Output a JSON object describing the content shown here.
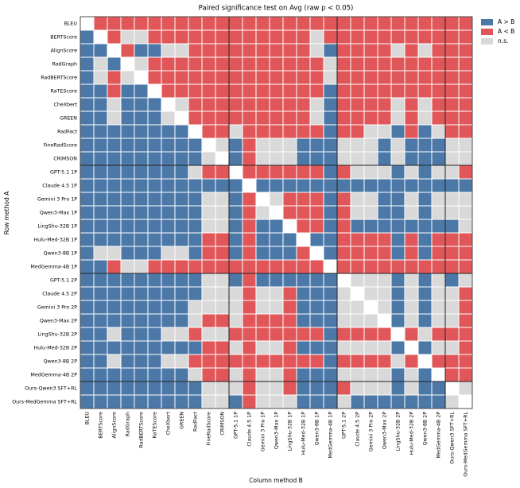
{
  "chart_data": {
    "type": "heatmap",
    "title": "Paired significance test on Avg (raw p < 0.05)",
    "x_label": "Column method B",
    "y_label": "Row method A",
    "categories": [
      "BLEU",
      "BERTScore",
      "AlignScore",
      "RadGraph",
      "RadBERTScore",
      "RaTEScore",
      "CheXbert",
      "GREEN",
      "RadFact",
      "FineRadScore",
      "CRIMSON",
      "GPT-5.1 1P",
      "Claude 4.5 1P",
      "Gemini 3 Pro 1P",
      "Qwen3-Max 1P",
      "LingShu-32B 1P",
      "Hulu-Med-32B 1P",
      "Qwen3-8B 1P",
      "MedGemma-4B 1P",
      "GPT-5.1 2P",
      "Claude 4.5 2P",
      "Gemini 3 Pro 2P",
      "Qwen3-Max 2P",
      "LingShu-32B 2P",
      "Hulu-Med-32B 2P",
      "Qwen3-8B 2P",
      "MedGemma-4B 2P",
      "Ours-Qwen3 SFT+RL",
      "Ours-MedGemma SFT+RL"
    ],
    "legend": [
      {
        "name": "A > B",
        "value": 1,
        "color": "#4c78a8"
      },
      {
        "name": "A < B",
        "value": -1,
        "color": "#e15759"
      },
      {
        "name": "n.s.",
        "value": 0,
        "color": "#d9d9d9"
      }
    ],
    "legend_position": "upper right outside",
    "z": [
      [
        null,
        -1,
        -1,
        -1,
        -1,
        -1,
        -1,
        -1,
        -1,
        -1,
        -1,
        -1,
        -1,
        -1,
        -1,
        -1,
        -1,
        -1,
        -1,
        -1,
        -1,
        -1,
        -1,
        -1,
        -1,
        -1,
        -1,
        -1,
        -1
      ],
      [
        1,
        null,
        -1,
        0,
        0,
        -1,
        -1,
        -1,
        -1,
        -1,
        -1,
        -1,
        -1,
        -1,
        -1,
        -1,
        -1,
        0,
        -1,
        -1,
        -1,
        -1,
        -1,
        -1,
        -1,
        -1,
        -1,
        -1,
        -1
      ],
      [
        1,
        1,
        null,
        -1,
        1,
        1,
        0,
        0,
        -1,
        -1,
        -1,
        -1,
        -1,
        -1,
        -1,
        -1,
        -1,
        0,
        1,
        -1,
        -1,
        -1,
        -1,
        0,
        -1,
        0,
        -1,
        -1,
        -1
      ],
      [
        1,
        0,
        1,
        null,
        0,
        -1,
        -1,
        -1,
        -1,
        -1,
        -1,
        -1,
        -1,
        -1,
        -1,
        -1,
        -1,
        -1,
        0,
        -1,
        -1,
        -1,
        -1,
        -1,
        -1,
        -1,
        -1,
        -1,
        -1
      ],
      [
        1,
        0,
        -1,
        0,
        null,
        -1,
        -1,
        -1,
        -1,
        -1,
        -1,
        -1,
        -1,
        -1,
        -1,
        -1,
        -1,
        -1,
        0,
        -1,
        -1,
        -1,
        -1,
        -1,
        -1,
        -1,
        -1,
        -1,
        -1
      ],
      [
        1,
        1,
        -1,
        1,
        1,
        null,
        -1,
        -1,
        -1,
        -1,
        -1,
        -1,
        -1,
        -1,
        -1,
        -1,
        -1,
        -1,
        1,
        -1,
        -1,
        -1,
        -1,
        -1,
        -1,
        -1,
        -1,
        -1,
        -1
      ],
      [
        1,
        1,
        0,
        1,
        1,
        1,
        null,
        0,
        -1,
        -1,
        -1,
        -1,
        -1,
        -1,
        -1,
        -1,
        -1,
        0,
        1,
        -1,
        -1,
        -1,
        -1,
        0,
        -1,
        0,
        -1,
        -1,
        -1
      ],
      [
        1,
        1,
        0,
        1,
        1,
        1,
        0,
        null,
        -1,
        -1,
        -1,
        -1,
        -1,
        -1,
        -1,
        -1,
        -1,
        0,
        1,
        -1,
        -1,
        -1,
        -1,
        0,
        -1,
        0,
        -1,
        -1,
        -1
      ],
      [
        1,
        1,
        1,
        1,
        1,
        1,
        1,
        1,
        null,
        -1,
        -1,
        0,
        -1,
        -1,
        -1,
        -1,
        -1,
        -1,
        1,
        -1,
        -1,
        0,
        0,
        1,
        -1,
        1,
        0,
        -1,
        -1
      ],
      [
        1,
        1,
        1,
        1,
        1,
        1,
        1,
        1,
        1,
        null,
        0,
        1,
        -1,
        0,
        0,
        0,
        1,
        1,
        1,
        0,
        0,
        0,
        1,
        0,
        1,
        1,
        1,
        0,
        0
      ],
      [
        1,
        1,
        1,
        1,
        1,
        1,
        1,
        1,
        1,
        0,
        null,
        1,
        -1,
        0,
        0,
        0,
        1,
        1,
        1,
        0,
        0,
        0,
        1,
        0,
        1,
        1,
        1,
        0,
        0
      ],
      [
        1,
        1,
        1,
        1,
        1,
        1,
        1,
        1,
        0,
        -1,
        -1,
        null,
        -1,
        -1,
        -1,
        -1,
        -1,
        -1,
        1,
        -1,
        0,
        0,
        0,
        1,
        0,
        1,
        0,
        0,
        -1
      ],
      [
        1,
        1,
        1,
        1,
        1,
        1,
        1,
        1,
        1,
        1,
        1,
        1,
        null,
        1,
        1,
        1,
        1,
        1,
        1,
        1,
        1,
        1,
        1,
        1,
        1,
        1,
        1,
        1,
        1
      ],
      [
        1,
        1,
        1,
        1,
        1,
        1,
        1,
        1,
        1,
        0,
        0,
        1,
        -1,
        null,
        0,
        -1,
        -1,
        -1,
        1,
        -1,
        0,
        0,
        1,
        1,
        0,
        1,
        0,
        0,
        0
      ],
      [
        1,
        1,
        1,
        1,
        1,
        1,
        1,
        1,
        1,
        0,
        0,
        1,
        -1,
        0,
        null,
        -1,
        -1,
        -1,
        1,
        -1,
        0,
        0,
        1,
        1,
        0,
        1,
        0,
        0,
        0
      ],
      [
        1,
        1,
        1,
        1,
        1,
        1,
        1,
        1,
        1,
        0,
        0,
        1,
        -1,
        1,
        1,
        null,
        -1,
        -1,
        1,
        -1,
        1,
        1,
        1,
        1,
        1,
        1,
        1,
        1,
        0
      ],
      [
        1,
        1,
        1,
        1,
        1,
        1,
        1,
        1,
        1,
        -1,
        -1,
        1,
        -1,
        1,
        1,
        1,
        null,
        1,
        1,
        -1,
        -1,
        -1,
        -1,
        1,
        -1,
        1,
        -1,
        -1,
        -1
      ],
      [
        1,
        0,
        0,
        1,
        1,
        1,
        0,
        0,
        1,
        -1,
        -1,
        1,
        -1,
        1,
        1,
        1,
        -1,
        null,
        1,
        -1,
        -1,
        -1,
        -1,
        1,
        -1,
        1,
        -1,
        -1,
        -1
      ],
      [
        1,
        1,
        -1,
        0,
        0,
        -1,
        -1,
        -1,
        -1,
        -1,
        -1,
        -1,
        -1,
        -1,
        -1,
        -1,
        -1,
        -1,
        null,
        -1,
        -1,
        -1,
        -1,
        -1,
        -1,
        -1,
        -1,
        -1,
        -1
      ],
      [
        1,
        1,
        1,
        1,
        1,
        1,
        1,
        1,
        1,
        0,
        0,
        1,
        -1,
        1,
        1,
        1,
        1,
        1,
        1,
        null,
        0,
        0,
        0,
        1,
        0,
        1,
        0,
        1,
        0
      ],
      [
        1,
        1,
        1,
        1,
        1,
        1,
        1,
        1,
        1,
        0,
        0,
        0,
        -1,
        0,
        0,
        -1,
        1,
        1,
        1,
        0,
        null,
        0,
        0,
        1,
        0,
        1,
        0,
        0,
        -1
      ],
      [
        1,
        1,
        1,
        1,
        1,
        1,
        1,
        1,
        0,
        0,
        0,
        0,
        -1,
        0,
        0,
        -1,
        1,
        1,
        1,
        0,
        0,
        null,
        0,
        1,
        0,
        1,
        0,
        0,
        -1
      ],
      [
        1,
        1,
        1,
        1,
        1,
        1,
        1,
        1,
        0,
        -1,
        -1,
        0,
        -1,
        -1,
        -1,
        -1,
        1,
        1,
        1,
        0,
        0,
        0,
        null,
        1,
        0,
        1,
        0,
        0,
        -1
      ],
      [
        1,
        1,
        0,
        1,
        1,
        1,
        0,
        0,
        -1,
        0,
        0,
        -1,
        -1,
        -1,
        -1,
        -1,
        -1,
        -1,
        1,
        -1,
        -1,
        -1,
        -1,
        null,
        -1,
        0,
        -1,
        -1,
        -1
      ],
      [
        1,
        1,
        1,
        1,
        1,
        1,
        1,
        1,
        1,
        -1,
        -1,
        0,
        -1,
        0,
        0,
        -1,
        1,
        1,
        1,
        0,
        0,
        0,
        0,
        1,
        null,
        1,
        0,
        0,
        -1
      ],
      [
        1,
        1,
        0,
        1,
        1,
        1,
        0,
        0,
        -1,
        -1,
        -1,
        -1,
        -1,
        -1,
        -1,
        -1,
        -1,
        -1,
        1,
        -1,
        -1,
        -1,
        -1,
        0,
        -1,
        null,
        -1,
        -1,
        -1
      ],
      [
        1,
        1,
        1,
        1,
        1,
        1,
        1,
        1,
        0,
        -1,
        -1,
        0,
        -1,
        0,
        0,
        -1,
        1,
        1,
        1,
        0,
        0,
        0,
        0,
        1,
        0,
        1,
        null,
        -1,
        -1
      ],
      [
        1,
        1,
        1,
        1,
        1,
        1,
        1,
        1,
        1,
        0,
        0,
        0,
        -1,
        0,
        0,
        -1,
        1,
        1,
        1,
        -1,
        0,
        0,
        0,
        1,
        0,
        1,
        1,
        null,
        0
      ],
      [
        1,
        1,
        1,
        1,
        1,
        1,
        1,
        1,
        1,
        0,
        0,
        1,
        -1,
        0,
        0,
        0,
        1,
        1,
        1,
        0,
        1,
        1,
        1,
        1,
        1,
        1,
        1,
        0,
        null
      ]
    ]
  }
}
